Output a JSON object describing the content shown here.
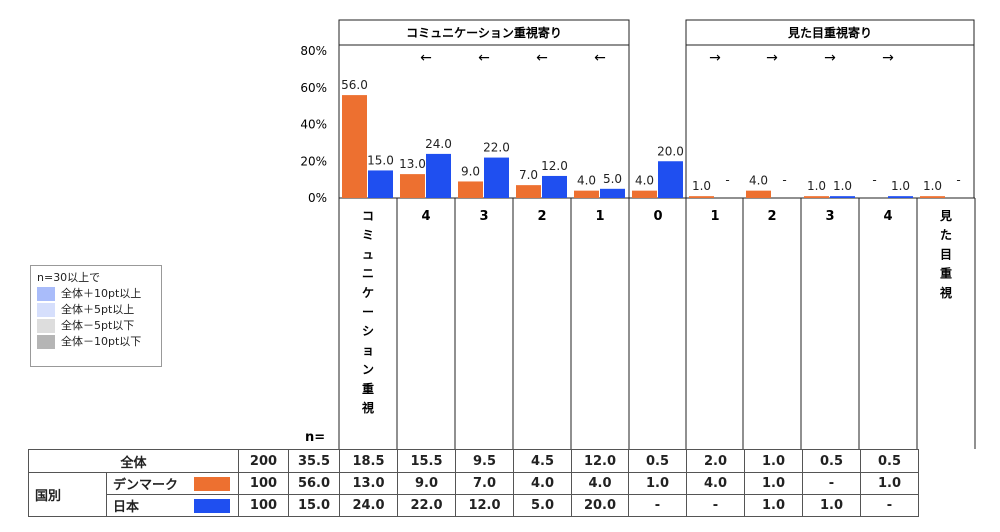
{
  "colors": {
    "orange": "#ED7030",
    "blue": "#1F4FF0"
  },
  "chart_data": {
    "type": "bar",
    "yticks": [
      "80%",
      "60%",
      "40%",
      "20%",
      "0%"
    ],
    "ylim": [
      0,
      80
    ],
    "n_label": "n=",
    "groups": [
      {
        "label": "コミュニケーション重視寄り",
        "arrow": "←"
      },
      {
        "label": "見た目重視寄り",
        "arrow": "→"
      }
    ],
    "categories": [
      "コミュニケーション重視",
      "4",
      "3",
      "2",
      "1",
      "0",
      "1",
      "2",
      "3",
      "4",
      "見た目重視"
    ],
    "series": [
      {
        "name": "デンマーク",
        "values": [
          56.0,
          13.0,
          9.0,
          7.0,
          4.0,
          4.0,
          1.0,
          4.0,
          1.0,
          null,
          1.0
        ],
        "labels": [
          "56.0",
          "13.0",
          "9.0",
          "7.0",
          "4.0",
          "4.0",
          "1.0",
          "4.0",
          "1.0",
          "-",
          "1.0"
        ]
      },
      {
        "name": "日本",
        "values": [
          15.0,
          24.0,
          22.0,
          12.0,
          5.0,
          20.0,
          null,
          null,
          1.0,
          1.0,
          null
        ],
        "labels": [
          "15.0",
          "24.0",
          "22.0",
          "12.0",
          "5.0",
          "20.0",
          "-",
          "-",
          "1.0",
          "1.0",
          "-"
        ]
      }
    ]
  },
  "legend": {
    "title": "n=30以上で",
    "items": [
      {
        "label": "全体＋10pt以上",
        "color": "#A9BCFA"
      },
      {
        "label": "全体＋5pt以上",
        "color": "#D6DFFC"
      },
      {
        "label": "全体－5pt以下",
        "color": "#DDDDDD"
      },
      {
        "label": "全体－10pt以下",
        "color": "#B5B5B5"
      }
    ]
  },
  "table": {
    "total": {
      "label": "全体",
      "n": "200",
      "values": [
        "35.5",
        "18.5",
        "15.5",
        "9.5",
        "4.5",
        "12.0",
        "0.5",
        "2.0",
        "1.0",
        "0.5",
        "0.5"
      ]
    },
    "section_label": "国別",
    "rows": [
      {
        "name": "デンマーク",
        "n": "100",
        "values": [
          "56.0",
          "13.0",
          "9.0",
          "7.0",
          "4.0",
          "4.0",
          "1.0",
          "4.0",
          "1.0",
          "-",
          "1.0"
        ]
      },
      {
        "name": "日本",
        "n": "100",
        "values": [
          "15.0",
          "24.0",
          "22.0",
          "12.0",
          "5.0",
          "20.0",
          "-",
          "-",
          "1.0",
          "1.0",
          "-"
        ]
      }
    ]
  }
}
